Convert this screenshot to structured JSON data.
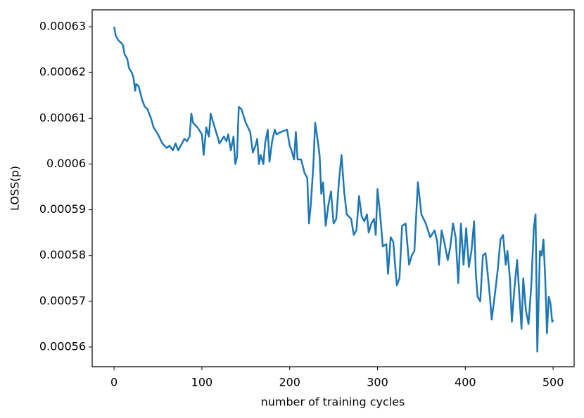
{
  "chart_data": {
    "type": "line",
    "xlabel": "number of training cycles",
    "ylabel": "LOSS(p)",
    "color": "#1f77b4",
    "x": [
      0,
      2,
      5,
      8,
      10,
      12,
      15,
      17,
      20,
      22,
      24,
      25,
      28,
      32,
      35,
      38,
      42,
      45,
      50,
      55,
      60,
      63,
      67,
      70,
      73,
      76,
      80,
      83,
      86,
      88,
      90,
      95,
      100,
      102,
      105,
      108,
      110,
      113,
      117,
      120,
      125,
      128,
      130,
      133,
      136,
      138,
      140,
      142,
      145,
      150,
      155,
      158,
      161,
      163,
      165,
      167,
      170,
      172,
      175,
      177,
      180,
      183,
      185,
      190,
      197,
      200,
      202,
      205,
      207,
      209,
      213,
      217,
      220,
      222,
      224,
      227,
      229,
      232,
      234,
      236,
      238,
      241,
      244,
      247,
      250,
      253,
      256,
      259,
      262,
      265,
      270,
      273,
      276,
      279,
      282,
      285,
      288,
      290,
      293,
      296,
      298,
      300,
      303,
      306,
      310,
      312,
      315,
      318,
      320,
      322,
      325,
      328,
      332,
      336,
      339,
      342,
      346,
      350,
      355,
      360,
      365,
      368,
      370,
      373,
      376,
      380,
      383,
      386,
      389,
      392,
      395,
      398,
      401,
      404,
      407,
      410,
      412,
      414,
      417,
      420,
      423,
      425,
      428,
      430,
      434,
      437,
      440,
      443,
      446,
      448,
      451,
      453,
      456,
      459,
      462,
      464,
      466,
      469,
      472,
      475,
      478,
      480,
      482,
      485,
      487,
      489,
      491,
      493,
      495,
      497,
      499,
      500
    ],
    "values": [
      0.00063,
      0.000628,
      0.000627,
      0.0006265,
      0.000626,
      0.000624,
      0.000623,
      0.000621,
      0.00062,
      0.000619,
      0.000616,
      0.0006175,
      0.000617,
      0.000614,
      0.0006125,
      0.000612,
      0.00061,
      0.000608,
      0.0006065,
      0.0006045,
      0.0006035,
      0.000604,
      0.000603,
      0.0006045,
      0.000603,
      0.000604,
      0.0006055,
      0.000605,
      0.000606,
      0.000611,
      0.000609,
      0.000608,
      0.0006065,
      0.000602,
      0.000608,
      0.000606,
      0.000611,
      0.000609,
      0.0006065,
      0.0006045,
      0.000606,
      0.000605,
      0.0006065,
      0.000603,
      0.000606,
      0.0006,
      0.0006015,
      0.0006125,
      0.000612,
      0.000609,
      0.000607,
      0.0006025,
      0.000604,
      0.0006055,
      0.0006,
      0.000602,
      0.0006,
      0.0006045,
      0.0006075,
      0.0006005,
      0.000605,
      0.0006075,
      0.0006065,
      0.000607,
      0.0006075,
      0.000604,
      0.000603,
      0.000601,
      0.000607,
      0.000601,
      0.000601,
      0.000598,
      0.000597,
      0.000587,
      0.000591,
      0.0006,
      0.000609,
      0.000605,
      0.000602,
      0.0005935,
      0.000596,
      0.0005865,
      0.000591,
      0.000594,
      0.000587,
      0.000588,
      0.000596,
      0.000602,
      0.000594,
      0.000589,
      0.000588,
      0.0005845,
      0.0005855,
      0.000593,
      0.0005885,
      0.0005875,
      0.000589,
      0.000585,
      0.000587,
      0.000588,
      0.0005845,
      0.0005945,
      0.000589,
      0.000582,
      0.0005825,
      0.000576,
      0.000584,
      0.000583,
      0.000578,
      0.0005735,
      0.000575,
      0.0005865,
      0.000587,
      0.000578,
      0.00058,
      0.000581,
      0.000596,
      0.000589,
      0.000587,
      0.000584,
      0.0005855,
      0.000583,
      0.000578,
      0.0005855,
      0.000583,
      0.000579,
      0.000582,
      0.000587,
      0.000584,
      0.000574,
      0.000587,
      0.000578,
      0.000586,
      0.0005775,
      0.000581,
      0.0005875,
      0.000576,
      0.000571,
      0.00057,
      0.00058,
      0.0005805,
      0.000577,
      0.000571,
      0.000566,
      0.000572,
      0.000577,
      0.0005835,
      0.0005845,
      0.000578,
      0.000581,
      0.0005745,
      0.0005655,
      0.000573,
      0.000579,
      0.00057,
      0.000564,
      0.000575,
      0.000568,
      0.000565,
      0.000573,
      0.000586,
      0.000589,
      0.000559,
      0.000581,
      0.00058,
      0.0005835,
      0.000575,
      0.000563,
      0.000571,
      0.0005695,
      0.0005655,
      0.000566
    ],
    "xlim": [
      -24.95,
      523.95
    ],
    "xticks": [
      0,
      100,
      200,
      300,
      400,
      500
    ],
    "ylim": [
      0.0005557,
      0.0006337
    ],
    "yticks": [
      0.00056,
      0.00057,
      0.00058,
      0.00059,
      0.0006,
      0.00061,
      0.00062,
      0.00063
    ]
  }
}
